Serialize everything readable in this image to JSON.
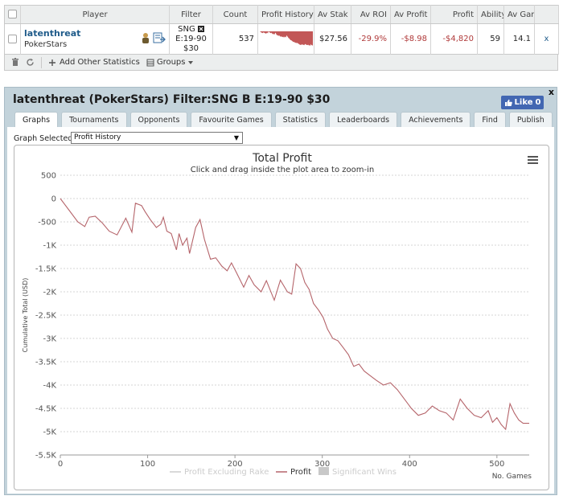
{
  "table": {
    "headers": [
      "Player",
      "Filter",
      "Count",
      "Profit History",
      "Av Stak",
      "Av ROI",
      "Av Profit",
      "Profit",
      "Ability",
      "Av Game"
    ],
    "row": {
      "player_name": "latenthreat",
      "site": "PokerStars",
      "filter_line1": "SNG",
      "filter_line2": "E:19-90",
      "filter_line3": "$30",
      "count": "537",
      "av_stake": "$27.56",
      "av_roi": "-29.9%",
      "av_profit": "-$8.98",
      "profit": "-$4,820",
      "ability": "59",
      "av_game": "14.1",
      "remove": "x"
    }
  },
  "toolbar": {
    "add_stats": "Add Other Statistics",
    "groups": "Groups"
  },
  "panel": {
    "title": "latenthreat (PokerStars) Filter:SNG B E:19-90 $30",
    "like_label": "Like",
    "like_count": "0",
    "close": "x",
    "tabs": [
      "Graphs",
      "Tournaments",
      "Opponents",
      "Favourite Games",
      "Statistics",
      "Leaderboards",
      "Achievements",
      "Find",
      "Publish"
    ],
    "active_tab": 0,
    "graph_selected_label": "Graph Selected:",
    "graph_selected_value": "Profit History"
  },
  "colors": {
    "profit_line": "#b5646a",
    "excl_rake": "#cccccc",
    "significant": "#c8c8c8",
    "sparkline": "#c25757"
  },
  "chart_data": {
    "type": "line",
    "title": "Total Profit",
    "subtitle": "Click and drag inside the plot area to zoom-in",
    "xlabel": "No. Games",
    "ylabel": "Cumulative Total (USD)",
    "xlim": [
      0,
      537
    ],
    "ylim": [
      -5500,
      500
    ],
    "x_ticks": [
      0,
      100,
      200,
      300,
      400,
      500
    ],
    "y_ticks": [
      500,
      0,
      -500,
      -1000,
      -1500,
      -2000,
      -2500,
      -3000,
      -3500,
      -4000,
      -4500,
      -5000,
      -5500
    ],
    "y_tick_labels": [
      "500",
      "0",
      "-500",
      "-1K",
      "-1.5K",
      "-2K",
      "-2.5K",
      "-3K",
      "-3.5K",
      "-4K",
      "-4.5K",
      "-5K",
      "-5.5K"
    ],
    "legend": [
      "Profit Excluding Rake",
      "Profit",
      "Significant Wins"
    ],
    "legend_position": "bottom",
    "series": [
      {
        "name": "Profit",
        "x": [
          0,
          10,
          20,
          28,
          33,
          40,
          48,
          56,
          65,
          75,
          82,
          86,
          93,
          97,
          103,
          110,
          115,
          118,
          122,
          127,
          133,
          136,
          140,
          145,
          148,
          155,
          160,
          165,
          172,
          178,
          185,
          191,
          196,
          202,
          210,
          216,
          222,
          230,
          236,
          245,
          252,
          260,
          265,
          270,
          275,
          280,
          285,
          290,
          296,
          301,
          306,
          312,
          318,
          324,
          330,
          336,
          342,
          348,
          355,
          362,
          370,
          378,
          386,
          394,
          402,
          410,
          418,
          426,
          434,
          442,
          450,
          458,
          466,
          474,
          482,
          490,
          495,
          500,
          505,
          510,
          515,
          520,
          525,
          530,
          537
        ],
        "y": [
          0,
          -250,
          -500,
          -600,
          -400,
          -380,
          -520,
          -700,
          -780,
          -420,
          -720,
          -100,
          -150,
          -280,
          -450,
          -620,
          -550,
          -400,
          -700,
          -750,
          -1100,
          -750,
          -1000,
          -850,
          -1180,
          -620,
          -450,
          -870,
          -1300,
          -1270,
          -1450,
          -1550,
          -1380,
          -1600,
          -1900,
          -1650,
          -1850,
          -2000,
          -1760,
          -2180,
          -1750,
          -2000,
          -2050,
          -1400,
          -1500,
          -1800,
          -1950,
          -2250,
          -2400,
          -2550,
          -2800,
          -3000,
          -3050,
          -3200,
          -3350,
          -3600,
          -3550,
          -3700,
          -3800,
          -3900,
          -4000,
          -3950,
          -4100,
          -4300,
          -4500,
          -4650,
          -4600,
          -4450,
          -4550,
          -4600,
          -4750,
          -4300,
          -4500,
          -4650,
          -4700,
          -4550,
          -4800,
          -4700,
          -4850,
          -4950,
          -4400,
          -4600,
          -4750,
          -4820,
          -4820
        ]
      }
    ]
  }
}
